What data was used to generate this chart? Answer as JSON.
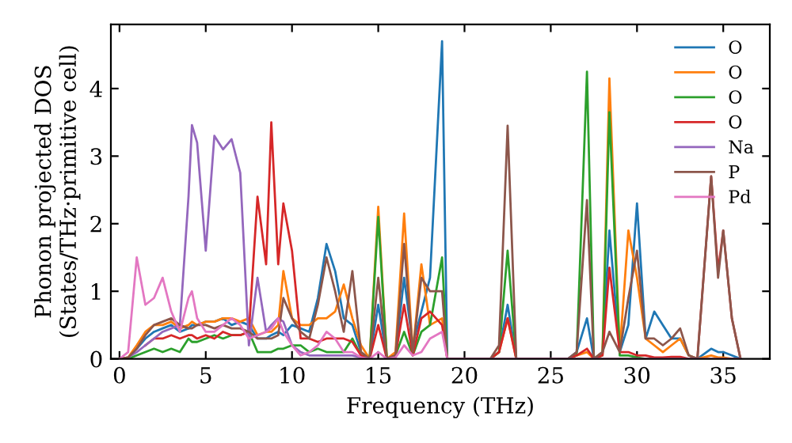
{
  "chart_data": {
    "type": "line",
    "xlabel": "Frequency (THz)",
    "ylabel": "Phonon projected DOS\n(States/THz·primitive cell)",
    "x": [
      0,
      0.5,
      1,
      1.5,
      2,
      2.5,
      3,
      3.5,
      4,
      4.2,
      4.5,
      5,
      5.5,
      6,
      6.5,
      7,
      7.5,
      8,
      8.5,
      8.8,
      9.2,
      9.5,
      10,
      10.5,
      11,
      11.5,
      12,
      12.5,
      13,
      13.5,
      14,
      14.5,
      15,
      15.5,
      16,
      16.5,
      17,
      17.5,
      18,
      18.7,
      19,
      20,
      21.5,
      22,
      22.5,
      23,
      26,
      26.5,
      27.1,
      27.5,
      28,
      28.4,
      29,
      29.5,
      30,
      30.5,
      31,
      31.5,
      32,
      32.5,
      33,
      33.5,
      34.3,
      34.7,
      35,
      35.5,
      36
    ],
    "series": [
      {
        "name": "O",
        "color": "#1f77b4",
        "values": [
          0,
          0.02,
          0.15,
          0.3,
          0.4,
          0.45,
          0.5,
          0.4,
          0.45,
          0.5,
          0.5,
          0.55,
          0.55,
          0.6,
          0.5,
          0.55,
          0.5,
          0.3,
          0.3,
          0.35,
          0.4,
          0.35,
          0.5,
          0.45,
          0.4,
          0.9,
          1.7,
          1.3,
          0.6,
          0.5,
          0.1,
          0,
          0.8,
          0,
          0.05,
          1.2,
          0.2,
          0.7,
          1.2,
          4.7,
          0,
          0,
          0,
          0.1,
          0.8,
          0,
          0,
          0.1,
          0.6,
          0,
          0.1,
          1.9,
          0.1,
          0.5,
          2.3,
          0.3,
          0.7,
          0.5,
          0.3,
          0.3,
          0.05,
          0,
          0.15,
          0.1,
          0.1,
          0.05,
          0
        ]
      },
      {
        "name": "O",
        "color": "#ff7f0e",
        "values": [
          0,
          0.02,
          0.2,
          0.4,
          0.5,
          0.5,
          0.55,
          0.45,
          0.5,
          0.55,
          0.5,
          0.55,
          0.55,
          0.6,
          0.6,
          0.55,
          0.6,
          0.35,
          0.4,
          0.4,
          0.5,
          1.3,
          0.6,
          0.5,
          0.5,
          0.6,
          0.6,
          0.7,
          1.1,
          0.6,
          0.2,
          0,
          2.25,
          0,
          0.1,
          2.15,
          0.1,
          1.4,
          0.5,
          0.6,
          0,
          0,
          0,
          0.1,
          0.6,
          0,
          0,
          0.05,
          0.1,
          0,
          0.1,
          4.15,
          0.1,
          1.9,
          1.2,
          0.3,
          0.2,
          0.1,
          0.2,
          0.3,
          0.05,
          0,
          0.05,
          0.02,
          0.02,
          0,
          0
        ]
      },
      {
        "name": "O",
        "color": "#2ca02c",
        "values": [
          0,
          0,
          0.05,
          0.1,
          0.15,
          0.1,
          0.15,
          0.1,
          0.3,
          0.25,
          0.25,
          0.3,
          0.35,
          0.3,
          0.35,
          0.35,
          0.4,
          0.1,
          0.1,
          0.1,
          0.15,
          0.15,
          0.2,
          0.2,
          0.1,
          0.15,
          0.1,
          0.1,
          0.1,
          0.3,
          0.05,
          0,
          2.1,
          0,
          0.05,
          0.4,
          0.05,
          0.4,
          0.5,
          1.5,
          0,
          0,
          0,
          0.1,
          1.6,
          0,
          0,
          0.05,
          4.25,
          0,
          0.05,
          3.65,
          0.05,
          0.05,
          0.02,
          0,
          0,
          null,
          null,
          null,
          null,
          null,
          null,
          null,
          null,
          null,
          null
        ]
      },
      {
        "name": "O",
        "color": "#d62728",
        "values": [
          null,
          null,
          null,
          0.2,
          0.3,
          0.3,
          0.35,
          0.3,
          0.35,
          0.35,
          0.3,
          0.35,
          0.3,
          0.4,
          0.35,
          0.35,
          0.4,
          2.4,
          1.4,
          3.5,
          1.4,
          2.3,
          1.6,
          0.3,
          0.3,
          0.25,
          0.3,
          0.3,
          0.3,
          0.25,
          0.05,
          0,
          0.5,
          0,
          0.05,
          0.8,
          0.05,
          0.6,
          0.7,
          0.5,
          0,
          0,
          0,
          0.1,
          0.6,
          0,
          0,
          0.05,
          0.15,
          0,
          0.05,
          1.35,
          0.1,
          0.1,
          0.05,
          0.05,
          0.02,
          0.02,
          0.03,
          0.03,
          0,
          0,
          2.7,
          1.3,
          1.9,
          0.6,
          0
        ]
      },
      {
        "name": "Na",
        "color": "#9467bd",
        "values": [
          null,
          0.02,
          0.1,
          0.2,
          0.3,
          0.4,
          0.45,
          0.5,
          2.4,
          3.46,
          3.2,
          1.6,
          3.3,
          3.1,
          3.25,
          2.75,
          0.2,
          1.2,
          0.4,
          0.5,
          0.6,
          0.55,
          0.2,
          0.1,
          0.05,
          0.05,
          0.05,
          0.05,
          0.05,
          0.05,
          0.02,
          null,
          null,
          null,
          null,
          null,
          null,
          null,
          null,
          null,
          null,
          null,
          null,
          null,
          null,
          null,
          null,
          null,
          null,
          null,
          null,
          null,
          null,
          null,
          null,
          null,
          null,
          null,
          null,
          null,
          null,
          null,
          null,
          null,
          null,
          null,
          null
        ]
      },
      {
        "name": "P",
        "color": "#8c564b",
        "values": [
          0,
          0.02,
          0.15,
          0.35,
          0.5,
          0.55,
          0.6,
          0.5,
          0.45,
          0.45,
          0.5,
          0.5,
          0.45,
          0.5,
          0.45,
          0.45,
          0.4,
          0.3,
          0.3,
          0.3,
          0.35,
          0.9,
          0.6,
          0.4,
          0.3,
          0.8,
          1.5,
          1.0,
          0.4,
          1.3,
          0.1,
          0,
          1.2,
          0,
          0.05,
          1.7,
          0.1,
          1.2,
          1.0,
          1.0,
          0,
          0,
          0,
          0.2,
          3.45,
          0,
          0,
          0.1,
          2.35,
          0,
          0.1,
          0.4,
          0.1,
          0.9,
          1.6,
          0.3,
          0.3,
          0.2,
          0.3,
          0.45,
          0.05,
          0,
          2.7,
          1.2,
          1.9,
          0.6,
          0
        ]
      },
      {
        "name": "Pd",
        "color": "#e377c2",
        "values": [
          0,
          0.1,
          1.5,
          0.8,
          0.9,
          1.2,
          0.7,
          0.4,
          0.9,
          1.0,
          0.6,
          0.4,
          0.4,
          0.5,
          0.6,
          0.5,
          0.3,
          0.35,
          0.4,
          0.45,
          0.6,
          0.4,
          0.2,
          0.05,
          0.1,
          0.2,
          0.4,
          0.3,
          0.1,
          0.1,
          0.02,
          0,
          0.1,
          0,
          0.02,
          0.2,
          0.05,
          0.1,
          0.3,
          0.4,
          0,
          0,
          0,
          0,
          0,
          0,
          0,
          0,
          0,
          0,
          0,
          0,
          0,
          0,
          0,
          0,
          0,
          0,
          0,
          0,
          0,
          0,
          0,
          0,
          0,
          0,
          0
        ]
      }
    ],
    "xlim": [
      -0.5,
      37.7
    ],
    "ylim": [
      0,
      4.95
    ],
    "xticks": [
      0,
      5,
      10,
      15,
      20,
      25,
      30,
      35
    ],
    "yticks": [
      0,
      1,
      2,
      3,
      4
    ],
    "grid": false,
    "legend": "top right",
    "marker": "none",
    "line_style": "solid"
  }
}
